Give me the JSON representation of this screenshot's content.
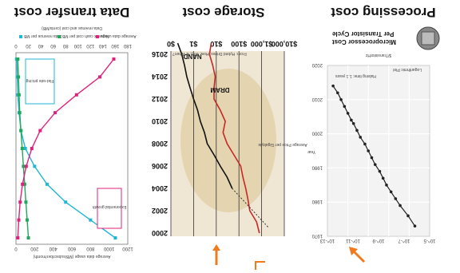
{
  "captions": [
    "Processing cost",
    "Storage cost",
    "Data transfer cost"
  ],
  "colors": {
    "accent_orange": "#f07b1e",
    "pink": "#e0217c",
    "cyan": "#1fb7d4",
    "green": "#22a85a",
    "red": "#c62828",
    "black": "#111111"
  },
  "icons": [
    "arrow-down-icon",
    "cpu-chip-icon"
  ],
  "chart_data": [
    {
      "type": "line",
      "title": "Microprocessor Cost\nPer Transistor Cycle",
      "title_lines": [
        "Microprocessor Cost",
        "Per Transistor Cycle"
      ],
      "badge": "Logarithmic Plot",
      "note": "Halving time: 1.1 years",
      "xlabel": "Year",
      "ylabel": "$/TransistorHz",
      "xlim": [
        1970,
        2020
      ],
      "x_ticks": [
        "1970",
        "1980",
        "1990",
        "2000",
        "2010",
        "2020"
      ],
      "y_ticks": [
        "10^-13",
        "10^-11",
        "10^-9",
        "10^-7",
        "10^-5"
      ],
      "series": [
        {
          "x": [
            1973,
            1976,
            1979,
            1981,
            1983,
            1985,
            1987,
            1989,
            1991,
            1993,
            1995,
            1997,
            1999,
            2001,
            2003,
            2004,
            2006,
            2008,
            2010,
            2012,
            2014
          ],
          "y": [
            -5.8,
            -6.4,
            -7.1,
            -7.5,
            -7.9,
            -8.3,
            -8.6,
            -8.9,
            -9.3,
            -9.6,
            -9.9,
            -10.2,
            -10.6,
            -10.9,
            -11.2,
            -11.4,
            -11.7,
            -12.0,
            -12.3,
            -12.6,
            -13.0
          ]
        }
      ]
    },
    {
      "type": "line",
      "ylabel": "Average Price per Gigabyte",
      "source": "From: Hybrid Drives: How, Why, & When?",
      "y_ticks": [
        "$0",
        "$1",
        "$10",
        "$100",
        "$1,000",
        "$10,000"
      ],
      "x_ticks": [
        "2000",
        "2002",
        "2004",
        "2006",
        "2008",
        "2010",
        "2012",
        "2014",
        "2016"
      ],
      "series": [
        {
          "name": "DRAM",
          "x": [
            2000,
            2001,
            2002,
            2003,
            2004,
            2005,
            2006,
            2007,
            2008,
            2009,
            2010,
            2011,
            2012,
            2013,
            2014,
            2015,
            2016,
            2017
          ],
          "y": [
            800,
            600,
            300,
            250,
            200,
            150,
            120,
            60,
            30,
            20,
            25,
            15,
            8,
            8,
            9,
            7,
            5,
            6
          ]
        },
        {
          "name": "NAND",
          "x": [
            2004,
            2005,
            2006,
            2007,
            2008,
            2009,
            2010,
            2011,
            2012,
            2013,
            2014,
            2015,
            2016,
            2017
          ],
          "y": [
            50,
            30,
            15,
            8,
            4,
            3,
            2,
            1.5,
            1,
            0.7,
            0.5,
            0.4,
            0.3,
            0.2
          ]
        }
      ],
      "dotted_extrapolation": true
    },
    {
      "type": "line",
      "ylabel_left": "Data revenue and cost (cents/MB)",
      "ylabel_right": "Average data usage (MB/subscriber/month)",
      "y_ticks_left": [
        "0",
        "20",
        "40",
        "60",
        "80",
        "100",
        "120",
        "140",
        "160",
        "180"
      ],
      "y_ticks_right": [
        "0",
        "200",
        "400",
        "600",
        "800",
        "1000",
        "1200"
      ],
      "legend": [
        "Data revenue per MB",
        "Network cash cost per MB",
        "Average data usage"
      ],
      "annotations": [
        "Exponential growth in mobile data traffic",
        "Flat-rate pricing causes rapidly falling yield on mobile broadband"
      ],
      "series": [
        {
          "name": "Data revenue per MB",
          "y": [
            160,
            120,
            80,
            50,
            30,
            15,
            8,
            5,
            3,
            2,
            1
          ]
        },
        {
          "name": "Network cash cost per MB",
          "y": [
            20,
            18,
            16,
            14,
            12,
            10,
            8,
            6,
            5,
            4,
            3
          ]
        },
        {
          "name": "Average data usage",
          "y": [
            20,
            30,
            45,
            70,
            110,
            170,
            260,
            420,
            650,
            900,
            1050
          ]
        }
      ]
    }
  ]
}
